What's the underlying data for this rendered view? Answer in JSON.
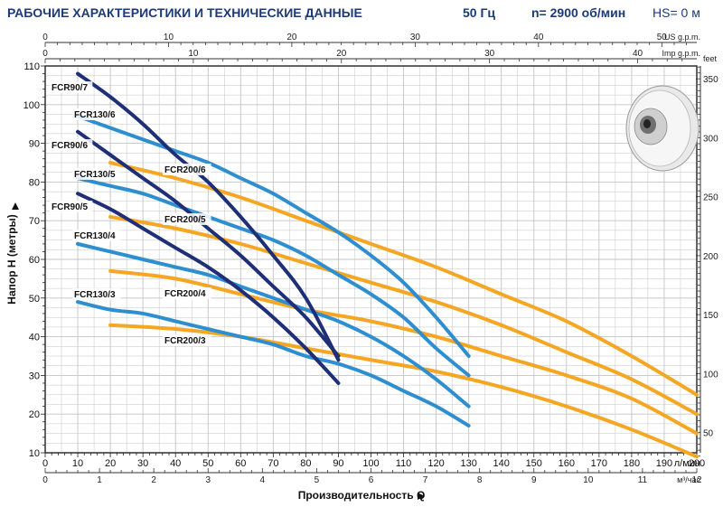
{
  "header": {
    "title": "РАБОЧИЕ ХАРАКТЕРИСТИКИ И ТЕХНИЧЕСКИЕ ДАННЫЕ",
    "freq": "50 Гц",
    "speed": "n= 2900 об/мин",
    "hs": "HS= 0 м"
  },
  "colors": {
    "navy": "#1e2f78",
    "blue": "#2d8ed0",
    "orange": "#f5a623",
    "grid": "#c4c4c4",
    "header": "#1b3a78"
  },
  "impeller_icon": "impeller-image",
  "chart_data": {
    "type": "line",
    "xlabel": "Производительность Q",
    "ylabel": "Напор H  (метры)",
    "x_unit": "л/мин",
    "xlim": [
      0,
      200
    ],
    "ylim": [
      10,
      110
    ],
    "grid": true,
    "x_ticks": [
      0,
      10,
      20,
      30,
      40,
      50,
      60,
      70,
      80,
      90,
      100,
      110,
      120,
      130,
      140,
      150,
      160,
      170,
      180,
      190,
      200
    ],
    "y_ticks": [
      10,
      20,
      30,
      40,
      50,
      60,
      70,
      80,
      90,
      100,
      110
    ],
    "secondary_axes": [
      {
        "position": "bottom",
        "unit": "м³/час",
        "ticks": [
          0,
          1,
          2,
          3,
          4,
          5,
          6,
          7,
          8,
          9,
          10,
          11,
          12
        ]
      },
      {
        "position": "top",
        "unit": "US g.p.m.",
        "ticks": [
          0,
          10,
          20,
          30,
          40,
          50
        ]
      },
      {
        "position": "top",
        "unit": "Imp g.p.m.",
        "ticks": [
          0,
          10,
          20,
          30,
          40
        ]
      },
      {
        "position": "right",
        "unit": "feet",
        "ticks": [
          50,
          100,
          150,
          200,
          250,
          300,
          350
        ]
      }
    ],
    "series": [
      {
        "name": "FCR90/7",
        "color": "navy",
        "points": [
          [
            10,
            108
          ],
          [
            20,
            102
          ],
          [
            30,
            95
          ],
          [
            40,
            87
          ],
          [
            50,
            80
          ],
          [
            60,
            71
          ],
          [
            70,
            61
          ],
          [
            80,
            50
          ],
          [
            90,
            34
          ]
        ]
      },
      {
        "name": "FCR90/6",
        "color": "navy",
        "points": [
          [
            10,
            93
          ],
          [
            20,
            87
          ],
          [
            30,
            81
          ],
          [
            40,
            75
          ],
          [
            50,
            68
          ],
          [
            60,
            61
          ],
          [
            70,
            53
          ],
          [
            80,
            45
          ],
          [
            90,
            35
          ]
        ]
      },
      {
        "name": "FCR90/5",
        "color": "navy",
        "points": [
          [
            10,
            77
          ],
          [
            20,
            73
          ],
          [
            30,
            68
          ],
          [
            40,
            63
          ],
          [
            50,
            58
          ],
          [
            60,
            52
          ],
          [
            70,
            45
          ],
          [
            80,
            37
          ],
          [
            90,
            28
          ]
        ]
      },
      {
        "name": "FCR130/6",
        "color": "blue",
        "points": [
          [
            10,
            97
          ],
          [
            20,
            94
          ],
          [
            30,
            91
          ],
          [
            40,
            88
          ],
          [
            50,
            85
          ],
          [
            60,
            81
          ],
          [
            70,
            77
          ],
          [
            80,
            72
          ],
          [
            90,
            67
          ],
          [
            100,
            61
          ],
          [
            110,
            54
          ],
          [
            120,
            45
          ],
          [
            130,
            35
          ]
        ]
      },
      {
        "name": "FCR130/5",
        "color": "blue",
        "points": [
          [
            10,
            81
          ],
          [
            20,
            79
          ],
          [
            30,
            77
          ],
          [
            40,
            74
          ],
          [
            50,
            71
          ],
          [
            60,
            68
          ],
          [
            70,
            65
          ],
          [
            80,
            61
          ],
          [
            90,
            56
          ],
          [
            100,
            51
          ],
          [
            110,
            45
          ],
          [
            120,
            37
          ],
          [
            130,
            30
          ]
        ]
      },
      {
        "name": "FCR130/4",
        "color": "blue",
        "points": [
          [
            10,
            64
          ],
          [
            20,
            62
          ],
          [
            30,
            60
          ],
          [
            40,
            58
          ],
          [
            50,
            56
          ],
          [
            60,
            53
          ],
          [
            70,
            50
          ],
          [
            80,
            47
          ],
          [
            90,
            44
          ],
          [
            100,
            40
          ],
          [
            110,
            35
          ],
          [
            120,
            29
          ],
          [
            130,
            22
          ]
        ]
      },
      {
        "name": "FCR130/3",
        "color": "blue",
        "points": [
          [
            10,
            49
          ],
          [
            20,
            47
          ],
          [
            30,
            46
          ],
          [
            40,
            44
          ],
          [
            50,
            42
          ],
          [
            60,
            40
          ],
          [
            70,
            38
          ],
          [
            80,
            35
          ],
          [
            90,
            33
          ],
          [
            100,
            30
          ],
          [
            110,
            26
          ],
          [
            120,
            22
          ],
          [
            130,
            17
          ]
        ]
      },
      {
        "name": "FCR200/6",
        "color": "orange",
        "points": [
          [
            20,
            85
          ],
          [
            40,
            81
          ],
          [
            60,
            76
          ],
          [
            80,
            70
          ],
          [
            100,
            64
          ],
          [
            120,
            58
          ],
          [
            140,
            51
          ],
          [
            160,
            44
          ],
          [
            180,
            35
          ],
          [
            200,
            25
          ]
        ]
      },
      {
        "name": "FCR200/5",
        "color": "orange",
        "points": [
          [
            20,
            71
          ],
          [
            40,
            68
          ],
          [
            60,
            64
          ],
          [
            80,
            59
          ],
          [
            100,
            54
          ],
          [
            120,
            49
          ],
          [
            140,
            43
          ],
          [
            160,
            36
          ],
          [
            180,
            29
          ],
          [
            200,
            20
          ]
        ]
      },
      {
        "name": "FCR200/4",
        "color": "orange",
        "points": [
          [
            20,
            57
          ],
          [
            40,
            55
          ],
          [
            60,
            51
          ],
          [
            80,
            47
          ],
          [
            100,
            44
          ],
          [
            120,
            40
          ],
          [
            140,
            35
          ],
          [
            160,
            30
          ],
          [
            180,
            24
          ],
          [
            200,
            15
          ]
        ]
      },
      {
        "name": "FCR200/3",
        "color": "orange",
        "points": [
          [
            20,
            43
          ],
          [
            40,
            42
          ],
          [
            60,
            40
          ],
          [
            80,
            37
          ],
          [
            100,
            34
          ],
          [
            120,
            31
          ],
          [
            140,
            27
          ],
          [
            160,
            22
          ],
          [
            180,
            16
          ],
          [
            200,
            9
          ]
        ]
      }
    ]
  }
}
